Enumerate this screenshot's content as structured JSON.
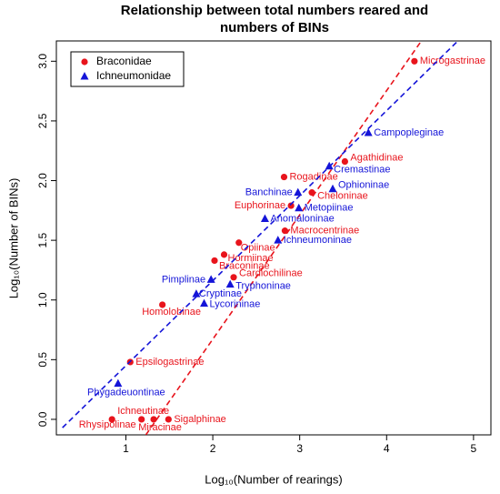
{
  "chart_data": {
    "type": "scatter",
    "title": [
      "Relationship between total numbers reared and",
      "numbers of BINs"
    ],
    "x_label": "Log₁₀(Number of rearings)",
    "y_label": "Log₁₀(Number of BINs)",
    "xlim": [
      0.2,
      5.2
    ],
    "ylim": [
      -0.13,
      3.17
    ],
    "xticks": [
      1,
      2,
      3,
      4,
      5
    ],
    "yticks": [
      {
        "value": 0,
        "label": "0.0"
      },
      0.5,
      {
        "value": 1,
        "label": "1.0"
      },
      1.5,
      {
        "value": 2,
        "label": "2.0"
      },
      2.5,
      {
        "value": 3,
        "label": "3.0"
      }
    ],
    "legend": "top-left",
    "series": [
      {
        "name": "Braconidae",
        "color": "#e8141c",
        "marker": "circle",
        "labels": [
          "Microgastrinae",
          "Agathidinae",
          "Rogadinae",
          "Cheloninae",
          "Euphorinae",
          "Macrocentrinae",
          "Opiinae",
          "Hormiinae",
          "Braconinae",
          "Cardiochilinae",
          "Homolobinae",
          "Epsilogastrinae",
          "Ichneutinae",
          "Rhysipolinae",
          "Miracinae",
          "Sigalphinae"
        ],
        "x": [
          4.32,
          3.52,
          2.82,
          3.14,
          2.9,
          2.83,
          2.3,
          2.13,
          2.02,
          2.24,
          1.42,
          1.05,
          1.18,
          0.84,
          1.32,
          1.49
        ],
        "values": [
          3.0,
          2.16,
          2.03,
          1.9,
          1.79,
          1.58,
          1.48,
          1.38,
          1.33,
          1.19,
          0.96,
          0.48,
          0,
          0,
          0,
          0
        ],
        "fit": {
          "x": [
            1.23,
            4.4
          ],
          "y": [
            -0.13,
            3.17
          ]
        }
      },
      {
        "name": "Ichneumonidae",
        "color": "#1414d8",
        "marker": "triangle",
        "labels": [
          "Campopleginae",
          "Cremastinae",
          "Ophioninae",
          "Banchinae",
          "Metopiinae",
          "Anomaloninae",
          "Ichneumoninae",
          "Pimplinae",
          "Tryphoninae",
          "Cryptinae",
          "Lycorininae",
          "Phygadeuontinae"
        ],
        "x": [
          3.79,
          3.34,
          3.38,
          2.98,
          2.99,
          2.6,
          2.75,
          1.98,
          2.2,
          1.81,
          1.9,
          0.91
        ],
        "values": [
          2.4,
          2.12,
          1.93,
          1.9,
          1.77,
          1.68,
          1.5,
          1.17,
          1.13,
          1.05,
          0.97,
          0.3
        ],
        "fit": {
          "x": [
            0.27,
            4.82
          ],
          "y": [
            -0.07,
            3.17
          ]
        }
      }
    ]
  }
}
